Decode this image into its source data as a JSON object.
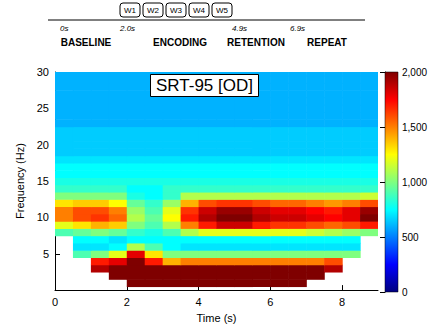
{
  "chart_data": {
    "type": "heatmap",
    "title": "SRT-95 [OD]",
    "x_label": "Time (s)",
    "y_label": "Frequency (Hz)",
    "xlim": [
      0,
      9
    ],
    "xticks": [
      0,
      2,
      4,
      6,
      8
    ],
    "ylim": [
      0,
      30
    ],
    "yticks": [
      5,
      10,
      15,
      20,
      25,
      30
    ],
    "colorbar": {
      "lim": [
        0,
        2000
      ],
      "ticks": [
        0,
        500,
        1000,
        1500,
        2000
      ]
    },
    "annotations": {
      "words": [
        "W1",
        "W2",
        "W3",
        "W4",
        "W5"
      ],
      "time_marks": [
        "0s",
        "2.0s",
        "4.9s",
        "6.9s"
      ],
      "phases": [
        "BASELINE",
        "ENCODING",
        "RETENTION",
        "REPEAT"
      ]
    },
    "x": [
      0.25,
      0.75,
      1.25,
      1.75,
      2.25,
      2.75,
      3.25,
      3.75,
      4.25,
      4.75,
      5.25,
      5.75,
      6.25,
      6.75,
      7.25,
      7.75,
      8.25,
      8.75
    ],
    "y": [
      1,
      2,
      3,
      4,
      5,
      6,
      7,
      8,
      9,
      10,
      11,
      12,
      13,
      14,
      15,
      16,
      17,
      18,
      19,
      20,
      21,
      22,
      23,
      24,
      25,
      26,
      27,
      28,
      29,
      30
    ],
    "values": [
      [
        null,
        null,
        null,
        null,
        2000,
        2000,
        2000,
        2000,
        2000,
        2000,
        2000,
        2000,
        2000,
        2000,
        null,
        null,
        null,
        null
      ],
      [
        null,
        null,
        null,
        2000,
        2000,
        2000,
        2000,
        2000,
        2000,
        2000,
        2000,
        2000,
        2000,
        2000,
        2000,
        null,
        null,
        null
      ],
      [
        null,
        null,
        1900,
        2000,
        2000,
        2000,
        2000,
        2000,
        2000,
        2000,
        2000,
        2000,
        2000,
        2000,
        2000,
        1900,
        null,
        null
      ],
      [
        null,
        null,
        1700,
        1800,
        2000,
        1700,
        1400,
        1500,
        1500,
        1500,
        1500,
        1500,
        1500,
        1500,
        1500,
        1600,
        null,
        null
      ],
      [
        null,
        900,
        1000,
        1200,
        1800,
        1300,
        1000,
        1000,
        1000,
        1000,
        1000,
        1000,
        1000,
        1000,
        1000,
        1000,
        1000,
        null
      ],
      [
        null,
        700,
        700,
        750,
        1100,
        900,
        750,
        700,
        700,
        700,
        700,
        700,
        700,
        700,
        700,
        700,
        700,
        null
      ],
      [
        null,
        750,
        750,
        700,
        750,
        750,
        750,
        750,
        750,
        750,
        750,
        750,
        750,
        750,
        750,
        750,
        750,
        null
      ],
      [
        900,
        950,
        1000,
        950,
        850,
        800,
        900,
        1100,
        1200,
        1200,
        1200,
        1200,
        1200,
        1200,
        1150,
        1100,
        1050,
        1000
      ],
      [
        1200,
        1300,
        1400,
        1350,
        1000,
        900,
        1100,
        1500,
        1700,
        1850,
        1850,
        1700,
        1650,
        1650,
        1600,
        1550,
        1600,
        1700
      ],
      [
        1500,
        1600,
        1650,
        1550,
        1100,
        950,
        1250,
        1700,
        1900,
        2000,
        2000,
        1900,
        1850,
        1850,
        1800,
        1750,
        1800,
        2000
      ],
      [
        1500,
        1600,
        1600,
        1500,
        1050,
        900,
        1200,
        1650,
        1850,
        1950,
        1950,
        1850,
        1800,
        1800,
        1750,
        1700,
        1800,
        1950
      ],
      [
        1300,
        1350,
        1350,
        1250,
        950,
        850,
        1050,
        1400,
        1600,
        1650,
        1650,
        1600,
        1550,
        1550,
        1500,
        1450,
        1500,
        1600
      ],
      [
        1000,
        1000,
        1000,
        1000,
        800,
        750,
        850,
        1100,
        1100,
        1100,
        1100,
        1100,
        1100,
        1100,
        1100,
        1100,
        1100,
        1150
      ],
      [
        850,
        850,
        850,
        850,
        750,
        750,
        850,
        850,
        850,
        850,
        850,
        850,
        850,
        850,
        850,
        850,
        850,
        850
      ],
      [
        800,
        800,
        800,
        800,
        800,
        800,
        800,
        800,
        800,
        800,
        800,
        800,
        800,
        800,
        800,
        800,
        800,
        800
      ],
      [
        750,
        750,
        750,
        750,
        750,
        750,
        750,
        750,
        750,
        750,
        750,
        750,
        750,
        750,
        750,
        750,
        750,
        750
      ],
      [
        750,
        750,
        750,
        750,
        750,
        750,
        750,
        750,
        750,
        750,
        750,
        750,
        750,
        750,
        750,
        750,
        750,
        750
      ],
      [
        700,
        700,
        700,
        700,
        700,
        700,
        700,
        700,
        700,
        700,
        700,
        700,
        700,
        700,
        700,
        700,
        700,
        700
      ],
      [
        650,
        650,
        650,
        650,
        650,
        650,
        650,
        650,
        650,
        650,
        650,
        650,
        650,
        650,
        650,
        650,
        650,
        650
      ],
      [
        650,
        650,
        650,
        650,
        650,
        650,
        650,
        650,
        650,
        650,
        650,
        650,
        650,
        650,
        650,
        650,
        650,
        650
      ],
      [
        650,
        650,
        650,
        650,
        650,
        650,
        650,
        650,
        650,
        650,
        650,
        650,
        650,
        650,
        650,
        650,
        650,
        650
      ],
      [
        650,
        650,
        650,
        650,
        650,
        650,
        650,
        650,
        650,
        650,
        650,
        650,
        650,
        650,
        650,
        650,
        650,
        650
      ],
      [
        600,
        600,
        600,
        600,
        600,
        600,
        600,
        600,
        600,
        600,
        600,
        600,
        600,
        600,
        600,
        600,
        600,
        600
      ],
      [
        600,
        600,
        600,
        600,
        600,
        600,
        600,
        600,
        600,
        600,
        600,
        600,
        600,
        600,
        600,
        600,
        600,
        600
      ],
      [
        600,
        600,
        600,
        600,
        600,
        600,
        600,
        600,
        600,
        600,
        600,
        600,
        600,
        600,
        600,
        600,
        600,
        600
      ],
      [
        600,
        600,
        600,
        600,
        600,
        600,
        600,
        600,
        600,
        600,
        600,
        600,
        600,
        600,
        600,
        600,
        600,
        600
      ],
      [
        600,
        600,
        600,
        600,
        600,
        600,
        600,
        600,
        600,
        600,
        600,
        600,
        600,
        600,
        600,
        600,
        600,
        600
      ],
      [
        600,
        600,
        600,
        600,
        600,
        600,
        600,
        600,
        600,
        600,
        600,
        600,
        600,
        600,
        600,
        600,
        600,
        600
      ],
      [
        600,
        600,
        600,
        600,
        600,
        600,
        600,
        600,
        600,
        600,
        600,
        600,
        600,
        600,
        600,
        600,
        600,
        600
      ],
      [
        600,
        600,
        600,
        600,
        600,
        600,
        600,
        600,
        600,
        600,
        600,
        600,
        600,
        600,
        600,
        600,
        600,
        600
      ]
    ]
  }
}
